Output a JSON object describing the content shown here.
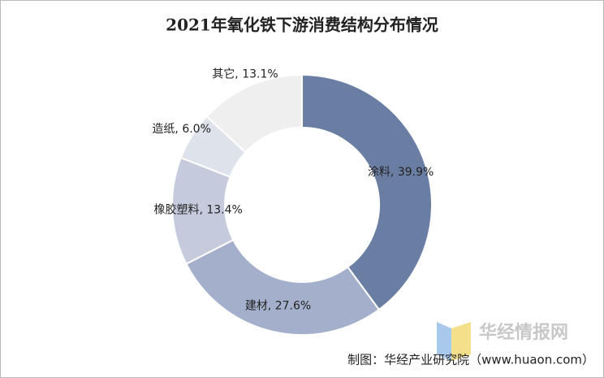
{
  "chart_data": {
    "type": "pie",
    "title": "2021年氧化铁下游消费结构分布情况",
    "values": [
      39.9,
      27.6,
      13.4,
      6.0,
      13.1
    ],
    "value_labels": [
      "涂料, 39.9%",
      "建材, 27.6%",
      "橡胶塑料, 13.4%",
      "造纸, 6.0%",
      "其它, 13.1%"
    ],
    "colors": [
      "#6a7ea3",
      "#a3afcb",
      "#c5cbdd",
      "#dde2eb",
      "#efefef"
    ],
    "source": "制图：华经产业研究院（www.huaon.com）",
    "watermark": "华经情报网"
  }
}
